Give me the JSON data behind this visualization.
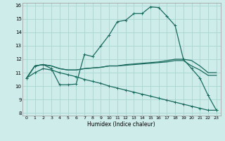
{
  "xlabel": "Humidex (Indice chaleur)",
  "background_color": "#ceecea",
  "grid_color": "#aed8d4",
  "line_color": "#1a6b5e",
  "xlim": [
    -0.5,
    23.5
  ],
  "ylim": [
    7.8,
    16.2
  ],
  "yticks": [
    8,
    9,
    10,
    11,
    12,
    13,
    14,
    15,
    16
  ],
  "xticks": [
    0,
    1,
    2,
    3,
    4,
    5,
    6,
    7,
    8,
    9,
    10,
    11,
    12,
    13,
    14,
    15,
    16,
    17,
    18,
    19,
    20,
    21,
    22,
    23
  ],
  "series": [
    {
      "x": [
        0,
        1,
        2,
        3,
        4,
        5,
        6,
        7,
        8,
        9,
        10,
        11,
        12,
        13,
        14,
        15,
        16,
        17,
        18,
        19,
        20,
        21,
        22,
        23
      ],
      "y": [
        10.6,
        11.5,
        11.6,
        11.3,
        10.1,
        10.1,
        10.15,
        12.35,
        12.2,
        13.0,
        13.8,
        14.8,
        14.9,
        15.4,
        15.4,
        15.9,
        15.85,
        15.2,
        14.5,
        12.0,
        11.3,
        10.6,
        9.3,
        8.2
      ],
      "marker": true,
      "linewidth": 0.9
    },
    {
      "x": [
        0,
        1,
        2,
        3,
        4,
        5,
        6,
        7,
        8,
        9,
        10,
        11,
        12,
        13,
        14,
        15,
        16,
        17,
        18,
        19,
        20,
        21,
        22,
        23
      ],
      "y": [
        10.6,
        11.5,
        11.6,
        11.5,
        11.3,
        11.2,
        11.2,
        11.3,
        11.35,
        11.4,
        11.5,
        11.5,
        11.6,
        11.65,
        11.7,
        11.75,
        11.8,
        11.9,
        12.0,
        12.0,
        11.9,
        11.5,
        11.0,
        11.0
      ],
      "marker": false,
      "linewidth": 0.9
    },
    {
      "x": [
        0,
        1,
        2,
        3,
        4,
        5,
        6,
        7,
        8,
        9,
        10,
        11,
        12,
        13,
        14,
        15,
        16,
        17,
        18,
        19,
        20,
        21,
        22,
        23
      ],
      "y": [
        10.6,
        11.5,
        11.6,
        11.5,
        11.3,
        11.2,
        11.2,
        11.3,
        11.35,
        11.4,
        11.5,
        11.5,
        11.55,
        11.6,
        11.65,
        11.7,
        11.75,
        11.8,
        11.9,
        11.9,
        11.5,
        11.2,
        10.8,
        10.8
      ],
      "marker": false,
      "linewidth": 0.9
    },
    {
      "x": [
        0,
        1,
        2,
        3,
        4,
        5,
        6,
        7,
        8,
        9,
        10,
        11,
        12,
        13,
        14,
        15,
        16,
        17,
        18,
        19,
        20,
        21,
        22,
        23
      ],
      "y": [
        10.6,
        11.0,
        11.3,
        11.2,
        11.0,
        10.85,
        10.7,
        10.5,
        10.35,
        10.2,
        10.0,
        9.85,
        9.7,
        9.55,
        9.4,
        9.25,
        9.1,
        8.95,
        8.8,
        8.65,
        8.5,
        8.35,
        8.2,
        8.2
      ],
      "marker": true,
      "linewidth": 0.9
    }
  ]
}
